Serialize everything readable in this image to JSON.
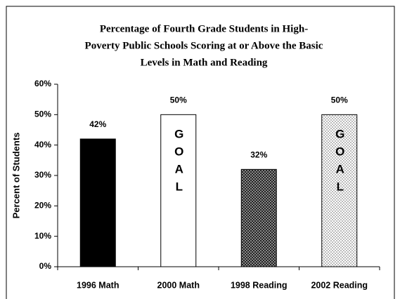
{
  "chart_data": {
    "type": "bar",
    "title": [
      "Percentage of Fourth Grade Students in High-",
      "Poverty Public Schools Scoring at or Above the Basic",
      "Levels in Math and Reading"
    ],
    "y_label": "Percent of Students",
    "categories": [
      "1996 Math",
      "2000 Math",
      "1998 Reading",
      "2002 Reading"
    ],
    "values": [
      42,
      50,
      32,
      50
    ],
    "value_labels": [
      "42%",
      "50%",
      "32%",
      "50%"
    ],
    "colors": [
      "#000000",
      "#ffffff",
      "#444444",
      "#d8d8d8"
    ],
    "patterns": [
      "solid",
      "solid",
      "checker",
      "checker"
    ],
    "annotations": [
      {
        "text": "GOAL",
        "category": "2000 Math"
      },
      {
        "text": "GOAL",
        "category": "2002 Reading"
      }
    ],
    "ylim": [
      0,
      60
    ],
    "yticks": [
      {
        "value": 0,
        "label": "0%"
      },
      {
        "value": 10,
        "label": "10%"
      },
      {
        "value": 20,
        "label": "20%"
      },
      {
        "value": 30,
        "label": "30%"
      },
      {
        "value": 40,
        "label": "40%"
      },
      {
        "value": 50,
        "label": "50%"
      },
      {
        "value": 60,
        "label": "60%"
      }
    ],
    "grid": false
  }
}
